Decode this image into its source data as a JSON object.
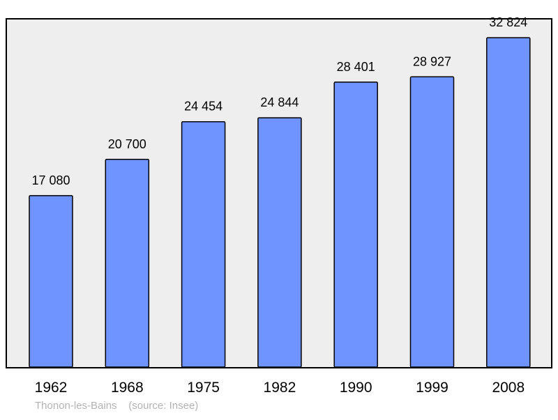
{
  "chart_data": {
    "type": "bar",
    "categories": [
      "1962",
      "1968",
      "1975",
      "1982",
      "1990",
      "1999",
      "2008"
    ],
    "values": [
      17080,
      20700,
      24454,
      24844,
      28401,
      28927,
      32824
    ],
    "value_labels": [
      "17 080",
      "20 700",
      "24 454",
      "24 844",
      "28 401",
      "28 927",
      "32 824"
    ],
    "title": "",
    "xlabel": "",
    "ylabel": "",
    "ylim": [
      0,
      34500
    ],
    "grid": false,
    "legend": "none",
    "colors": {
      "bar_fill": "#7094ff",
      "bar_stroke": "#000000",
      "plot_background": "#eeeeee",
      "plot_border": "#000000",
      "caption": "#b3b3b3"
    }
  },
  "caption": {
    "place": "Thonon-les-Bains",
    "source": "(source: Insee)"
  }
}
